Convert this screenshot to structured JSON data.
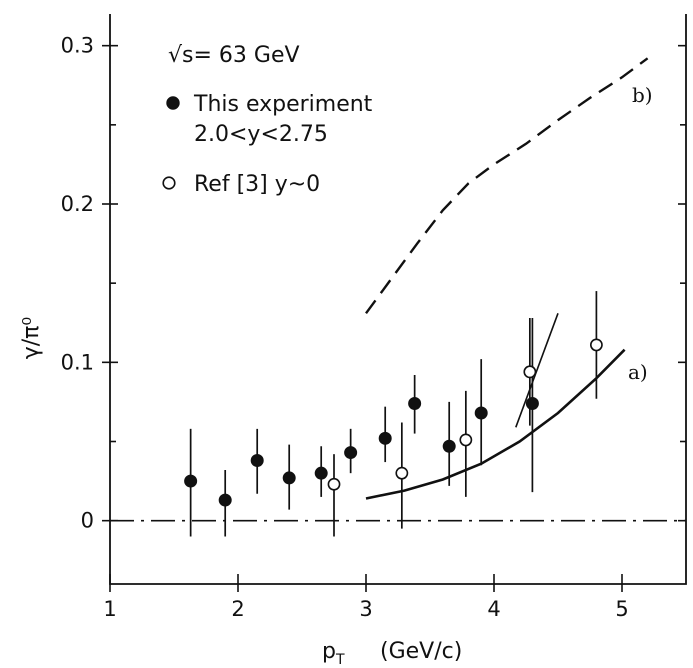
{
  "chart_data": {
    "type": "scatter",
    "xlabel_main": "p",
    "xlabel_sub": "T",
    "xlabel_unit": "(GeV/c)",
    "ylabel": "γ/π⁰",
    "xlim": [
      1,
      5.5
    ],
    "ylim": [
      -0.04,
      0.32
    ],
    "xticks": [
      1,
      2,
      3,
      4,
      5
    ],
    "xtick_labels": [
      "1",
      "2",
      "3",
      "4",
      "5"
    ],
    "yticks": [
      0,
      0.1,
      0.2,
      0.3
    ],
    "ytick_labels": [
      "0",
      "0.1",
      "0.2",
      "0.3"
    ],
    "legend": {
      "energy": "√s= 63 GeV",
      "entries": [
        {
          "marker": "filled-circle",
          "label": "This experiment",
          "sublabel": "2.0<y<2.75"
        },
        {
          "marker": "open-circle",
          "label": "Ref [3] y~0"
        }
      ]
    },
    "series": [
      {
        "name": "This experiment",
        "marker": "filled",
        "points": [
          {
            "x": 1.63,
            "y": 0.025,
            "lo": -0.01,
            "hi": 0.058
          },
          {
            "x": 1.9,
            "y": 0.013,
            "lo": -0.01,
            "hi": 0.032
          },
          {
            "x": 2.15,
            "y": 0.038,
            "lo": 0.017,
            "hi": 0.058
          },
          {
            "x": 2.4,
            "y": 0.027,
            "lo": 0.007,
            "hi": 0.048
          },
          {
            "x": 2.65,
            "y": 0.03,
            "lo": 0.015,
            "hi": 0.047
          },
          {
            "x": 2.88,
            "y": 0.043,
            "lo": 0.03,
            "hi": 0.058
          },
          {
            "x": 3.15,
            "y": 0.052,
            "lo": 0.037,
            "hi": 0.072
          },
          {
            "x": 3.38,
            "y": 0.074,
            "lo": 0.055,
            "hi": 0.092
          },
          {
            "x": 3.65,
            "y": 0.047,
            "lo": 0.022,
            "hi": 0.075
          },
          {
            "x": 3.9,
            "y": 0.068,
            "lo": 0.035,
            "hi": 0.102
          },
          {
            "x": 4.3,
            "y": 0.074,
            "lo": 0.018,
            "hi": 0.128
          }
        ]
      },
      {
        "name": "Ref [3] y~0",
        "marker": "open",
        "points": [
          {
            "x": 2.75,
            "y": 0.023,
            "lo": -0.01,
            "hi": 0.042
          },
          {
            "x": 3.28,
            "y": 0.03,
            "lo": -0.005,
            "hi": 0.062
          },
          {
            "x": 3.78,
            "y": 0.051,
            "lo": 0.015,
            "hi": 0.082
          },
          {
            "x": 4.28,
            "y": 0.094,
            "lo": 0.06,
            "hi": 0.128
          },
          {
            "x": 4.8,
            "y": 0.111,
            "lo": 0.077,
            "hi": 0.145
          }
        ]
      }
    ],
    "curves": [
      {
        "label": "a)",
        "style": "solid",
        "points": [
          [
            3.0,
            0.014
          ],
          [
            3.3,
            0.019
          ],
          [
            3.6,
            0.026
          ],
          [
            3.9,
            0.036
          ],
          [
            4.2,
            0.05
          ],
          [
            4.5,
            0.068
          ],
          [
            4.8,
            0.09
          ],
          [
            5.02,
            0.108
          ]
        ]
      },
      {
        "label": "b)",
        "style": "dashed",
        "points": [
          [
            3.0,
            0.131
          ],
          [
            3.2,
            0.153
          ],
          [
            3.4,
            0.175
          ],
          [
            3.6,
            0.196
          ],
          [
            3.8,
            0.213
          ],
          [
            4.0,
            0.225
          ],
          [
            4.25,
            0.238
          ],
          [
            4.5,
            0.253
          ],
          [
            4.75,
            0.267
          ],
          [
            5.0,
            0.28
          ],
          [
            5.2,
            0.292
          ]
        ]
      },
      {
        "label": "",
        "style": "solid-thin",
        "points": [
          [
            4.17,
            0.059
          ],
          [
            4.5,
            0.131
          ]
        ]
      },
      {
        "label": "",
        "style": "dash-dot",
        "points": [
          [
            1.0,
            0.0
          ],
          [
            5.5,
            0.0
          ]
        ]
      }
    ]
  }
}
